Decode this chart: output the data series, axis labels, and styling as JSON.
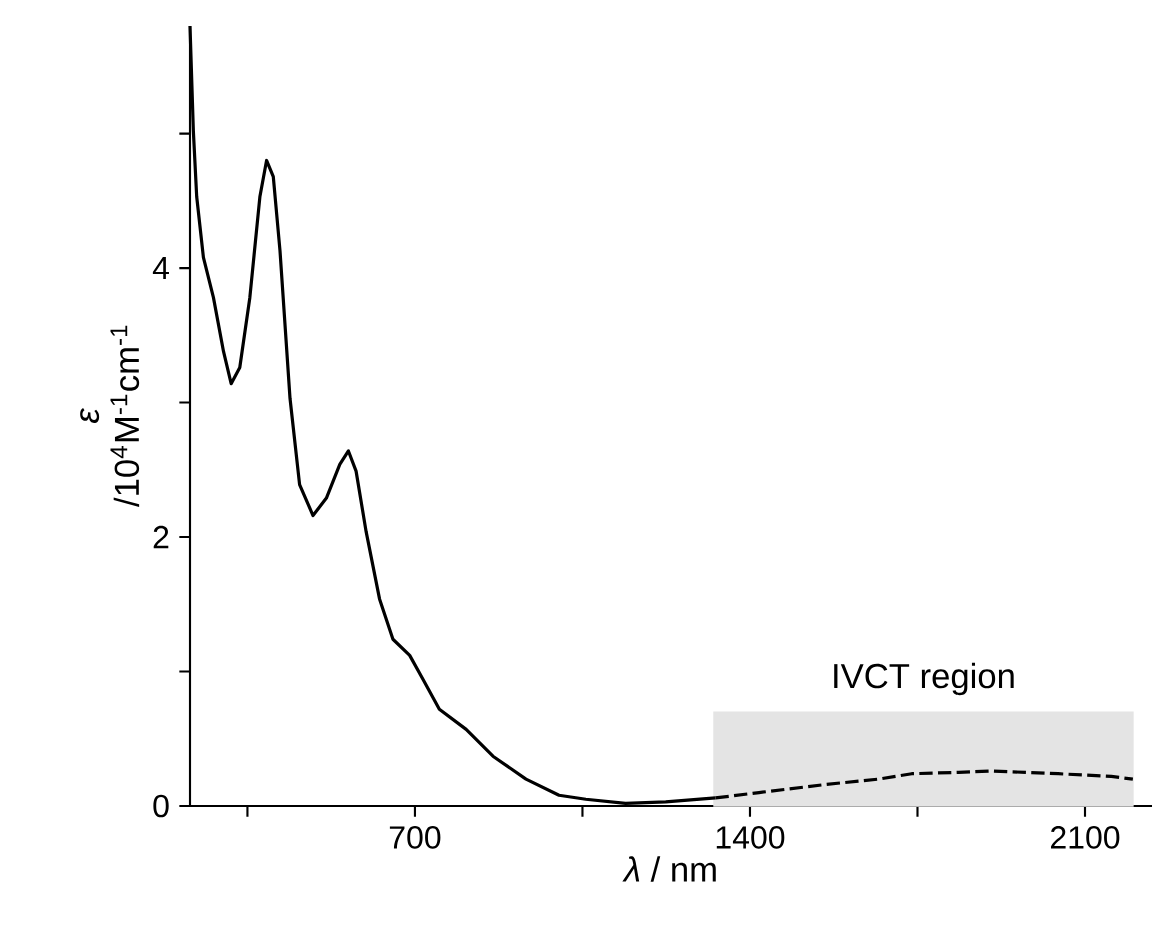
{
  "chart_data": {
    "type": "line",
    "xlabel": "*λ* / nm",
    "ylabel": "*ε* /10$^{4}$M$^{-1}$cm$^{-1}$",
    "series": [
      {
        "color": "#000000",
        "line_style": "solid",
        "x": [
          230,
          237,
          244,
          258,
          279,
          300,
          316,
          334,
          355,
          376,
          390,
          404,
          418,
          439,
          459,
          487,
          515,
          543,
          561,
          577,
          598,
          626,
          654,
          689,
          717,
          751,
          807,
          863,
          932,
          1001,
          1057,
          1140,
          1224,
          1328
        ],
        "values": [
          5.8,
          5.02,
          4.53,
          4.08,
          3.78,
          3.38,
          3.14,
          3.26,
          3.78,
          4.53,
          4.8,
          4.68,
          4.13,
          3.03,
          2.39,
          2.16,
          2.29,
          2.54,
          2.64,
          2.49,
          2.04,
          1.54,
          1.24,
          1.12,
          0.94,
          0.72,
          0.57,
          0.37,
          0.2,
          0.08,
          0.05,
          0.02,
          0.03,
          0.06
        ]
      },
      {
        "color": "#000000",
        "line_style": "dashed",
        "x": [
          1328,
          1419,
          1558,
          1669,
          1738,
          1836,
          1905,
          2044,
          2155,
          2200
        ],
        "values": [
          0.06,
          0.1,
          0.16,
          0.2,
          0.24,
          0.25,
          0.26,
          0.24,
          0.22,
          0.2
        ]
      }
    ],
    "xlim": [
      230,
      2240
    ],
    "xticks": [
      {
        "value": 350,
        "label": null
      },
      700,
      {
        "value": 1050,
        "label": null
      },
      1400,
      {
        "value": 1750,
        "label": null
      },
      2100
    ],
    "ylim": [
      0,
      5.8
    ],
    "yticks": [
      0,
      {
        "value": 1,
        "label": null
      },
      2,
      {
        "value": 3,
        "label": null
      },
      4,
      {
        "value": 5,
        "label": null
      }
    ],
    "bands": [
      {
        "axis": "x",
        "from": 1325,
        "to": 2200,
        "label": "IVCT region",
        "color": "#e4e4e4"
      }
    ]
  }
}
